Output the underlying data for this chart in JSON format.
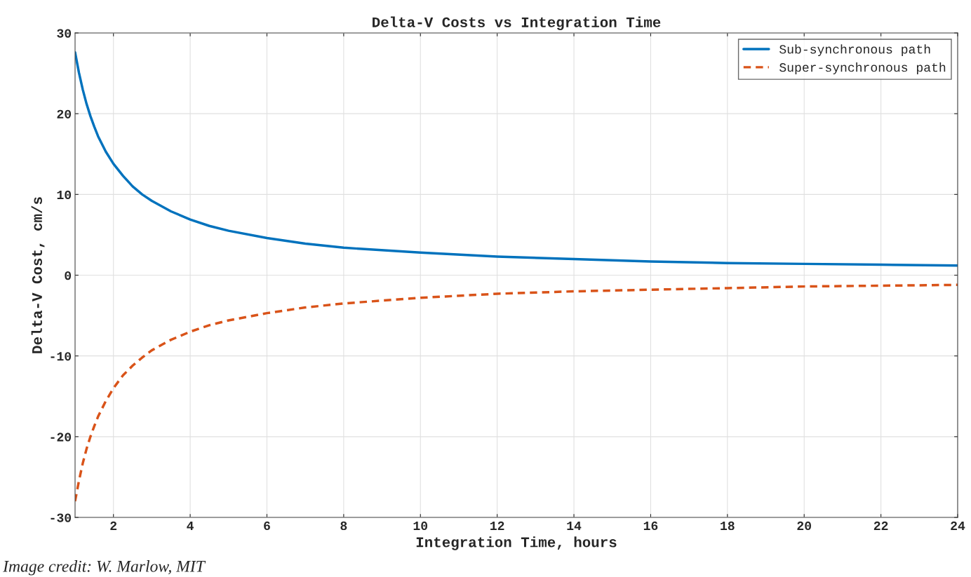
{
  "chart_data": {
    "type": "line",
    "title": "Delta-V Costs vs Integration Time",
    "xlabel": "Integration Time, hours",
    "ylabel": "Delta-V Cost, cm/s",
    "x": [
      1,
      1.1,
      1.2,
      1.3,
      1.4,
      1.5,
      1.6,
      1.8,
      2,
      2.25,
      2.5,
      2.75,
      3,
      3.5,
      4,
      4.5,
      5,
      6,
      7,
      8,
      10,
      12,
      14,
      16,
      18,
      20,
      22,
      24
    ],
    "series": [
      {
        "name": "Sub-synchronous path",
        "color": "#0072bd",
        "line_style": "solid",
        "values": [
          27.6,
          25.1,
          23,
          21.2,
          19.7,
          18.4,
          17.2,
          15.3,
          13.8,
          12.3,
          11,
          10,
          9.2,
          7.9,
          6.9,
          6.1,
          5.5,
          4.6,
          3.9,
          3.4,
          2.8,
          2.3,
          2,
          1.7,
          1.5,
          1.4,
          1.3,
          1.2
        ]
      },
      {
        "name": "Super-synchronous path",
        "color": "#d95319",
        "line_style": "dashed",
        "values": [
          -28,
          -25.5,
          -23.3,
          -21.5,
          -20,
          -18.7,
          -17.5,
          -15.6,
          -14,
          -12.4,
          -11.2,
          -10.2,
          -9.3,
          -8,
          -7,
          -6.2,
          -5.6,
          -4.7,
          -4,
          -3.5,
          -2.8,
          -2.3,
          -2,
          -1.8,
          -1.6,
          -1.4,
          -1.3,
          -1.2
        ]
      }
    ],
    "xlim": [
      1,
      24
    ],
    "xticks": [
      2,
      4,
      6,
      8,
      10,
      12,
      14,
      16,
      18,
      20,
      22,
      24
    ],
    "ylim": [
      -30,
      30
    ],
    "yticks": [
      -30,
      -20,
      -10,
      0,
      10,
      20,
      30
    ],
    "grid": true,
    "legend": "top right",
    "annotations": [
      "Image credit: W. Marlow, MIT"
    ]
  }
}
